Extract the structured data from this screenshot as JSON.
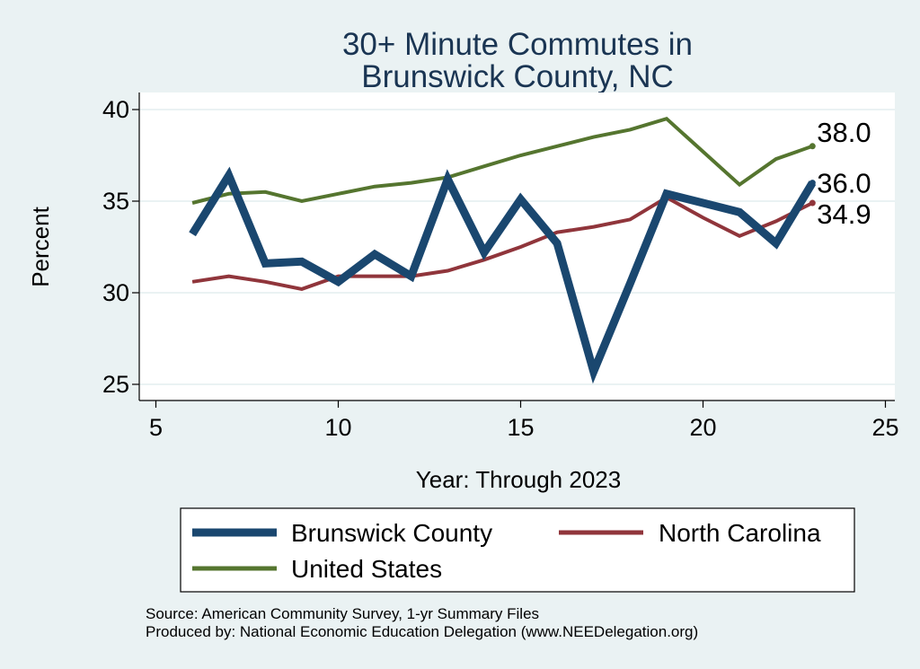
{
  "chart_data": {
    "type": "line",
    "title": [
      "30+ Minute Commutes in",
      "Brunswick County, NC"
    ],
    "xlabel": "Year: Through 2023",
    "ylabel": "Percent",
    "xlim": [
      5,
      25
    ],
    "ylim": [
      25,
      40
    ],
    "xticks": [
      "5",
      "10",
      "15",
      "20",
      "25"
    ],
    "yticks": [
      "25",
      "30",
      "35",
      "40"
    ],
    "grid": true,
    "series": [
      {
        "name": "Brunswick County",
        "color": "#1a476f",
        "x": [
          6,
          7,
          8,
          9,
          10,
          11,
          12,
          13,
          14,
          15,
          16,
          17,
          18,
          19,
          20,
          21,
          22,
          23
        ],
        "values": [
          33.2,
          36.4,
          31.6,
          31.7,
          30.6,
          32.1,
          30.9,
          36.2,
          32.2,
          35.1,
          32.7,
          25.7,
          30.5,
          35.4,
          34.9,
          34.4,
          32.7,
          36.0
        ],
        "end_label": "36.0"
      },
      {
        "name": "North Carolina",
        "color": "#90353b",
        "x": [
          6,
          7,
          8,
          9,
          10,
          11,
          12,
          13,
          14,
          15,
          16,
          17,
          18,
          19,
          20,
          21,
          22,
          23
        ],
        "values": [
          30.6,
          30.9,
          30.6,
          30.2,
          30.9,
          30.9,
          30.9,
          31.2,
          31.8,
          32.5,
          33.3,
          33.6,
          34.0,
          35.2,
          34.1,
          33.1,
          33.9,
          34.9
        ],
        "end_label": "34.9"
      },
      {
        "name": "United States",
        "color": "#55752f",
        "x": [
          6,
          7,
          8,
          9,
          10,
          11,
          12,
          13,
          14,
          15,
          16,
          17,
          18,
          19,
          20,
          21,
          22,
          23
        ],
        "values": [
          34.9,
          35.4,
          35.5,
          35.0,
          35.4,
          35.8,
          36.0,
          36.3,
          36.9,
          37.5,
          38.0,
          38.5,
          38.9,
          39.5,
          37.7,
          35.9,
          37.3,
          38.0
        ],
        "end_label": "38.0"
      }
    ],
    "legend": {
      "position": "bottom",
      "items": [
        "Brunswick County",
        "North Carolina",
        "United States"
      ]
    }
  },
  "notes": {
    "source": "Source: American Community Survey, 1-yr Summary Files",
    "produced_by": "Produced by: National Economic Education Delegation (www.NEEDelegation.org)"
  }
}
